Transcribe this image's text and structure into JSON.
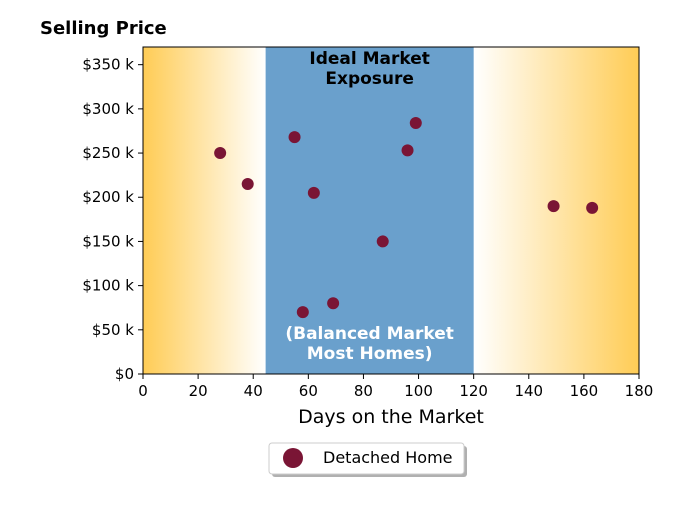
{
  "chart_data": {
    "type": "scatter",
    "title": "Selling Price",
    "xlabel": "Days on the Market",
    "ylabel": "",
    "xlim": [
      0,
      180
    ],
    "ylim": [
      0,
      370000
    ],
    "x_ticks": [
      0,
      20,
      40,
      60,
      80,
      100,
      120,
      140,
      160,
      180
    ],
    "x_tick_labels": [
      "0",
      "20",
      "40",
      "60",
      "80",
      "100",
      "120",
      "140",
      "160",
      "180"
    ],
    "y_ticks": [
      0,
      50000,
      100000,
      150000,
      200000,
      250000,
      300000,
      350000
    ],
    "y_tick_labels": [
      "$0",
      "$50 k",
      "$100 k",
      "$150 k",
      "$200 k",
      "$250 k",
      "$300 k",
      "$350 k"
    ],
    "grid": false,
    "legend_position": "bottom-center",
    "series": [
      {
        "name": "Detached Home",
        "color": "#7a1535",
        "points": [
          {
            "x": 28,
            "y": 250000
          },
          {
            "x": 38,
            "y": 215000
          },
          {
            "x": 55,
            "y": 268000
          },
          {
            "x": 58,
            "y": 70000
          },
          {
            "x": 62,
            "y": 205000
          },
          {
            "x": 69,
            "y": 80000
          },
          {
            "x": 87,
            "y": 150000
          },
          {
            "x": 96,
            "y": 253000
          },
          {
            "x": 99,
            "y": 284000
          },
          {
            "x": 149,
            "y": 190000
          },
          {
            "x": 163,
            "y": 188000
          }
        ]
      }
    ],
    "regions": [
      {
        "x_range": [
          44.5,
          120
        ],
        "color": "#6aa0cc",
        "top_label_lines": [
          "Ideal Market",
          "Exposure"
        ],
        "top_label_color": "#000000",
        "bottom_label_lines": [
          "(Balanced Market",
          "Most Homes)"
        ],
        "bottom_label_color": "#ffffff"
      }
    ],
    "background_gradient": {
      "edge_color": "#ffcc55",
      "center_color": "#ffffff"
    }
  }
}
